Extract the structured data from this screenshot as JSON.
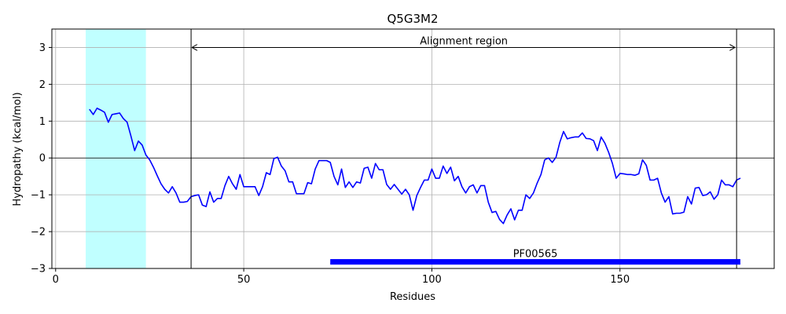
{
  "chart_data": {
    "type": "line",
    "title": "Q5G3M2",
    "xlabel": "Residues",
    "ylabel": "Hydropathy (kcal/mol)",
    "xlim": [
      -1,
      191
    ],
    "ylim": [
      -3,
      3.5
    ],
    "xticks": [
      0,
      50,
      100,
      150
    ],
    "yticks": [
      -3,
      -2,
      -1,
      0,
      1,
      2,
      3
    ],
    "grid": true,
    "series": [
      {
        "color": "#0000ff",
        "x_start": 9,
        "values": [
          1.32,
          1.18,
          1.35,
          1.3,
          1.24,
          0.97,
          1.18,
          1.2,
          1.22,
          1.07,
          0.97,
          0.6,
          0.2,
          0.46,
          0.35,
          0.08,
          -0.05,
          -0.25,
          -0.48,
          -0.7,
          -0.85,
          -0.95,
          -0.78,
          -0.95,
          -1.2,
          -1.2,
          -1.18,
          -1.05,
          -1.02,
          -1.0,
          -1.28,
          -1.32,
          -0.92,
          -1.2,
          -1.1,
          -1.1,
          -0.75,
          -0.5,
          -0.7,
          -0.85,
          -0.45,
          -0.78,
          -0.78,
          -0.78,
          -0.78,
          -1.02,
          -0.78,
          -0.4,
          -0.45,
          -0.02,
          0.02,
          -0.22,
          -0.35,
          -0.65,
          -0.65,
          -0.97,
          -0.97,
          -0.97,
          -0.67,
          -0.7,
          -0.3,
          -0.07,
          -0.07,
          -0.07,
          -0.12,
          -0.5,
          -0.73,
          -0.3,
          -0.8,
          -0.65,
          -0.8,
          -0.65,
          -0.68,
          -0.28,
          -0.25,
          -0.55,
          -0.15,
          -0.32,
          -0.32,
          -0.72,
          -0.85,
          -0.72,
          -0.85,
          -0.98,
          -0.85,
          -1.0,
          -1.42,
          -1.02,
          -0.8,
          -0.6,
          -0.6,
          -0.3,
          -0.55,
          -0.55,
          -0.22,
          -0.42,
          -0.25,
          -0.62,
          -0.5,
          -0.78,
          -0.95,
          -0.78,
          -0.73,
          -0.95,
          -0.75,
          -0.75,
          -1.2,
          -1.48,
          -1.45,
          -1.67,
          -1.78,
          -1.55,
          -1.38,
          -1.68,
          -1.42,
          -1.42,
          -1.0,
          -1.1,
          -0.95,
          -0.68,
          -0.45,
          -0.05,
          0.0,
          -0.12,
          0.02,
          0.42,
          0.72,
          0.52,
          0.55,
          0.57,
          0.57,
          0.68,
          0.53,
          0.52,
          0.47,
          0.2,
          0.57,
          0.4,
          0.15,
          -0.15,
          -0.55,
          -0.42,
          -0.43,
          -0.45,
          -0.45,
          -0.47,
          -0.43,
          -0.05,
          -0.2,
          -0.6,
          -0.6,
          -0.55,
          -0.95,
          -1.2,
          -1.05,
          -1.52,
          -1.5,
          -1.5,
          -1.47,
          -1.05,
          -1.25,
          -0.82,
          -0.8,
          -1.02,
          -1.0,
          -0.92,
          -1.12,
          -1.0,
          -0.6,
          -0.73,
          -0.73,
          -0.78,
          -0.6,
          -0.55
        ]
      }
    ],
    "highlight": {
      "x_from": 8,
      "x_to": 24,
      "color": "#c0ffff"
    },
    "alignment_region": {
      "x_from": 36,
      "x_to": 181,
      "label": "Alignment region"
    },
    "domain_bar": {
      "x_from": 73,
      "x_to": 182,
      "y": -2.82,
      "label": "PF00565",
      "color": "#0000ff"
    }
  }
}
